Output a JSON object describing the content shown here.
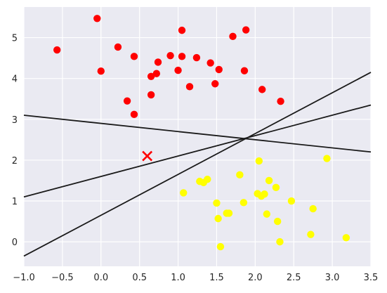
{
  "chart_data": {
    "type": "scatter",
    "title": "",
    "xlabel": "",
    "ylabel": "",
    "xlim": [
      -1.0,
      3.5
    ],
    "ylim": [
      -0.6,
      5.75
    ],
    "grid": true,
    "x_ticks": [
      -1.0,
      -0.5,
      0.0,
      0.5,
      1.0,
      1.5,
      2.0,
      2.5,
      3.0,
      3.5
    ],
    "x_tick_labels": [
      "−1.0",
      "−0.5",
      "0.0",
      "0.5",
      "1.0",
      "1.5",
      "2.0",
      "2.5",
      "3.0",
      "3.5"
    ],
    "y_ticks": [
      0,
      1,
      2,
      3,
      4,
      5
    ],
    "y_tick_labels": [
      "0",
      "1",
      "2",
      "3",
      "4",
      "5"
    ],
    "colors": {
      "background": "#eaeaf2",
      "grid": "#ffffff",
      "class_a": "#ff0000",
      "class_b": "#ffff00",
      "line": "#1a1a1a",
      "marker": "#ff0000"
    },
    "series": [
      {
        "color": "#ff0000",
        "points": [
          [
            -0.57,
            4.7
          ],
          [
            -0.05,
            5.47
          ],
          [
            0.0,
            4.18
          ],
          [
            0.22,
            4.77
          ],
          [
            0.34,
            3.45
          ],
          [
            0.43,
            4.54
          ],
          [
            0.43,
            3.12
          ],
          [
            0.65,
            4.05
          ],
          [
            0.65,
            3.6
          ],
          [
            0.72,
            4.12
          ],
          [
            0.74,
            4.4
          ],
          [
            0.9,
            4.56
          ],
          [
            1.0,
            4.2
          ],
          [
            1.05,
            5.18
          ],
          [
            1.05,
            4.54
          ],
          [
            1.15,
            3.8
          ],
          [
            1.24,
            4.51
          ],
          [
            1.42,
            4.38
          ],
          [
            1.48,
            3.87
          ],
          [
            1.53,
            4.22
          ],
          [
            1.71,
            5.03
          ],
          [
            1.86,
            4.19
          ],
          [
            1.88,
            5.19
          ],
          [
            2.09,
            3.73
          ],
          [
            2.33,
            3.44
          ]
        ]
      },
      {
        "color": "#ffff00",
        "points": [
          [
            1.07,
            1.2
          ],
          [
            1.28,
            1.48
          ],
          [
            1.33,
            1.45
          ],
          [
            1.38,
            1.53
          ],
          [
            1.5,
            0.95
          ],
          [
            1.52,
            0.57
          ],
          [
            1.55,
            -0.12
          ],
          [
            1.63,
            0.7
          ],
          [
            1.66,
            0.7
          ],
          [
            1.8,
            1.64
          ],
          [
            1.85,
            0.96
          ],
          [
            2.03,
            1.18
          ],
          [
            2.05,
            1.98
          ],
          [
            2.08,
            1.12
          ],
          [
            2.12,
            1.17
          ],
          [
            2.15,
            0.68
          ],
          [
            2.18,
            1.5
          ],
          [
            2.27,
            1.33
          ],
          [
            2.29,
            0.5
          ],
          [
            2.32,
            0.0
          ],
          [
            2.47,
            1.0
          ],
          [
            2.72,
            0.18
          ],
          [
            2.75,
            0.81
          ],
          [
            2.93,
            2.04
          ],
          [
            3.18,
            0.1
          ]
        ]
      }
    ],
    "lines": [
      {
        "slope": 1.0,
        "intercept": 0.65
      },
      {
        "slope": 0.5,
        "intercept": 1.6
      },
      {
        "slope": -0.2,
        "intercept": 2.9
      }
    ],
    "new_point": {
      "x": 0.6,
      "y": 2.1,
      "marker": "x",
      "color": "#ff0000"
    }
  }
}
